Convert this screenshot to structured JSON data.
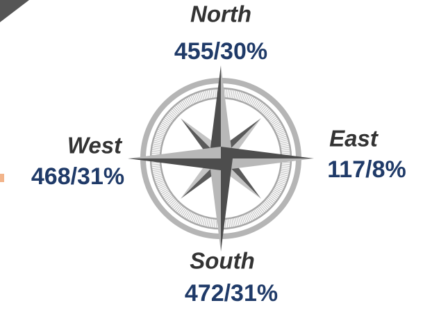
{
  "directions": [
    {
      "name": "North",
      "label": "455/30%"
    },
    {
      "name": "West",
      "label": "468/31%"
    },
    {
      "name": "East",
      "label": "117/8%"
    },
    {
      "name": "South",
      "label": "472/31%"
    }
  ]
}
